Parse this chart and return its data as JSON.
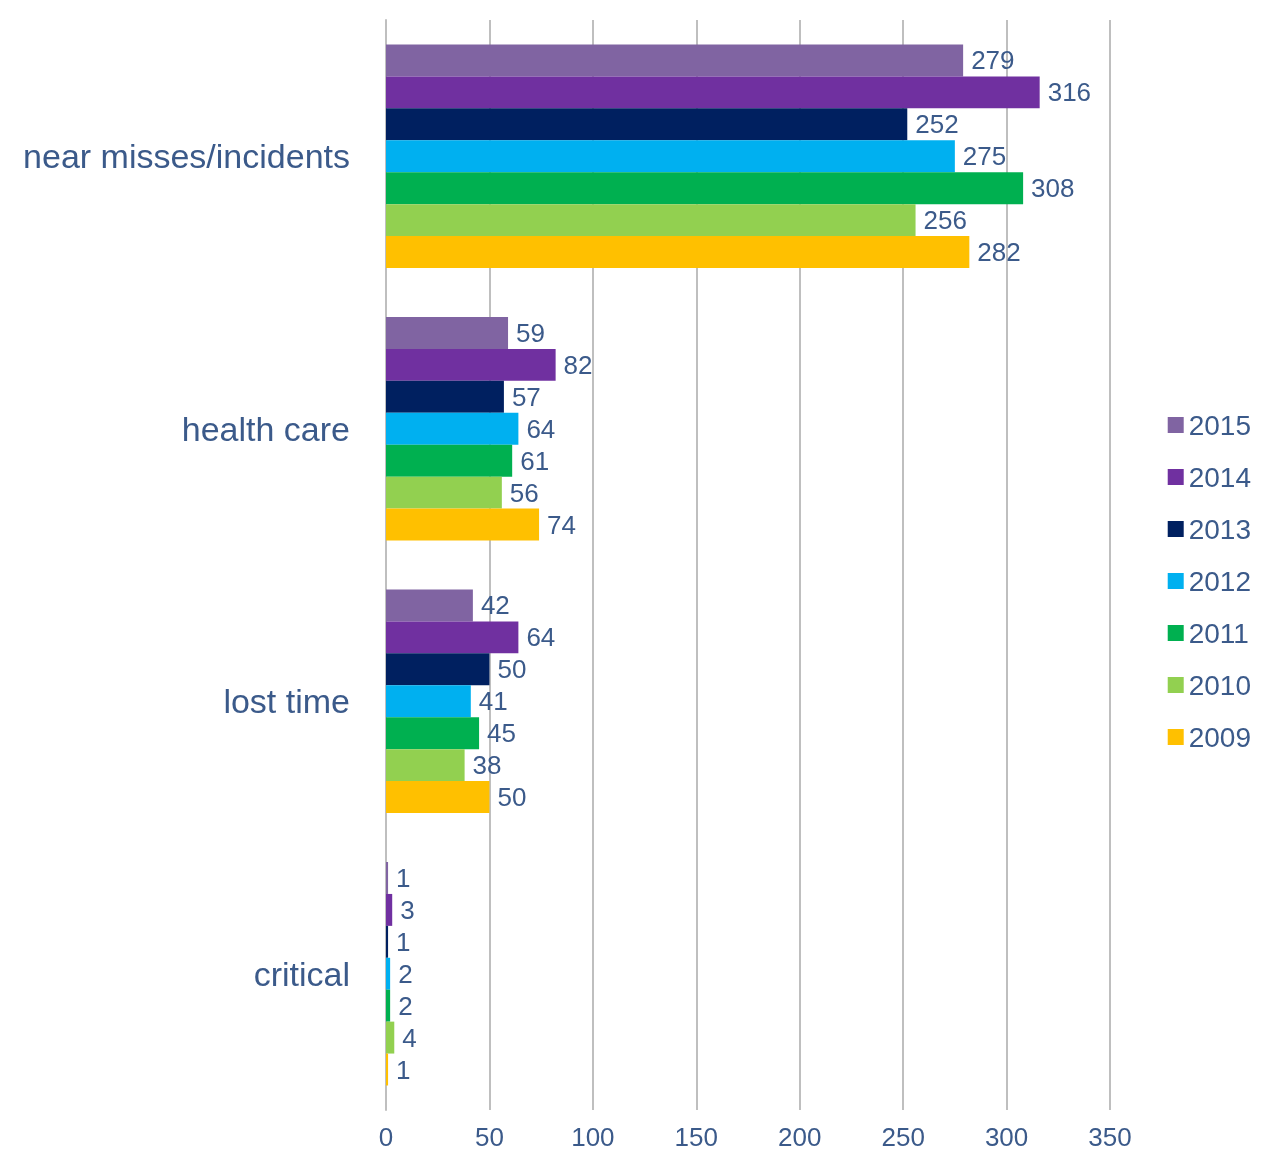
{
  "chart_data": {
    "type": "bar",
    "orientation": "horizontal",
    "categories": [
      "near misses/incidents",
      "health care",
      "lost time",
      "critical"
    ],
    "series": [
      {
        "name": "2015",
        "color": "#8064a2",
        "values": [
          279,
          59,
          42,
          1
        ]
      },
      {
        "name": "2014",
        "color": "#7030a0",
        "values": [
          316,
          82,
          64,
          3
        ]
      },
      {
        "name": "2013",
        "color": "#002060",
        "values": [
          252,
          57,
          50,
          1
        ]
      },
      {
        "name": "2012",
        "color": "#00b0f0",
        "values": [
          275,
          64,
          41,
          2
        ]
      },
      {
        "name": "2011",
        "color": "#00b050",
        "values": [
          308,
          61,
          45,
          2
        ]
      },
      {
        "name": "2010",
        "color": "#92d050",
        "values": [
          256,
          56,
          38,
          4
        ]
      },
      {
        "name": "2009",
        "color": "#ffc000",
        "values": [
          282,
          74,
          50,
          1
        ]
      }
    ],
    "xlim": [
      0,
      350
    ],
    "xticks": [
      0,
      50,
      100,
      150,
      200,
      250,
      300,
      350
    ],
    "grid": "x",
    "legend": "right",
    "data_labels": true
  }
}
